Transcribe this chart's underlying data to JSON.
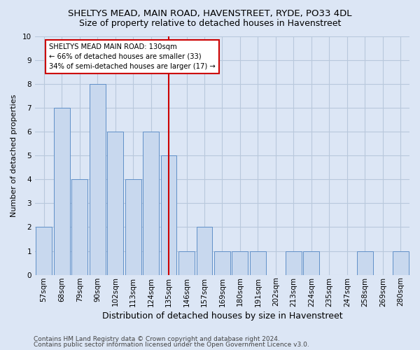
{
  "title": "SHELTYS MEAD, MAIN ROAD, HAVENSTREET, RYDE, PO33 4DL",
  "subtitle": "Size of property relative to detached houses in Havenstreet",
  "xlabel": "Distribution of detached houses by size in Havenstreet",
  "ylabel": "Number of detached properties",
  "categories": [
    "57sqm",
    "68sqm",
    "79sqm",
    "90sqm",
    "102sqm",
    "113sqm",
    "124sqm",
    "135sqm",
    "146sqm",
    "157sqm",
    "169sqm",
    "180sqm",
    "191sqm",
    "202sqm",
    "213sqm",
    "224sqm",
    "235sqm",
    "247sqm",
    "258sqm",
    "269sqm",
    "280sqm"
  ],
  "values": [
    2,
    7,
    4,
    8,
    6,
    4,
    6,
    5,
    1,
    2,
    1,
    1,
    1,
    0,
    1,
    1,
    0,
    0,
    1,
    0,
    1
  ],
  "bar_color": "#c8d8ee",
  "bar_edge_color": "#6090c8",
  "highlight_index": 7,
  "highlight_line_color": "#cc0000",
  "annotation_line1": "SHELTYS MEAD MAIN ROAD: 130sqm",
  "annotation_line2": "← 66% of detached houses are smaller (33)",
  "annotation_line3": "34% of semi-detached houses are larger (17) →",
  "annotation_box_color": "#ffffff",
  "annotation_box_edge": "#cc0000",
  "ylim": [
    0,
    10
  ],
  "yticks": [
    0,
    1,
    2,
    3,
    4,
    5,
    6,
    7,
    8,
    9,
    10
  ],
  "footer1": "Contains HM Land Registry data © Crown copyright and database right 2024.",
  "footer2": "Contains public sector information licensed under the Open Government Licence v3.0.",
  "fig_bg_color": "#dce6f5",
  "plot_bg_color": "#dce6f5",
  "grid_color": "#b8c8dc",
  "title_fontsize": 9.5,
  "subtitle_fontsize": 9,
  "tick_fontsize": 7.5,
  "xlabel_fontsize": 9,
  "ylabel_fontsize": 8,
  "footer_fontsize": 6.5
}
